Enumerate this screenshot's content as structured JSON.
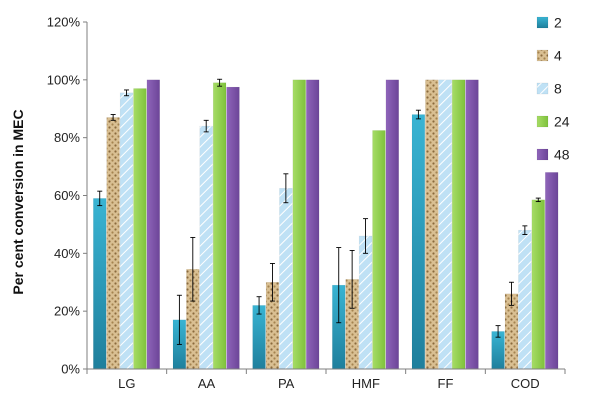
{
  "chart_data": {
    "type": "bar",
    "ylabel": "Per cent conversion in MEC",
    "y_ticks": [
      "0%",
      "20%",
      "40%",
      "60%",
      "80%",
      "100%",
      "120%"
    ],
    "ylim": [
      0,
      120
    ],
    "grid": false,
    "legend_position": "right",
    "categories": [
      "LG",
      "AA",
      "PA",
      "HMF",
      "FF",
      "COD"
    ],
    "series": [
      {
        "name": "2",
        "color": "#2f9fbf",
        "pattern": "solid-gradient",
        "values": [
          59,
          17,
          22,
          29,
          88,
          13
        ],
        "errors": [
          2.5,
          8.5,
          3,
          13,
          1.5,
          2
        ]
      },
      {
        "name": "4",
        "color": "#c9a877",
        "pattern": "dots",
        "values": [
          87,
          34.5,
          30,
          31,
          100,
          26
        ],
        "errors": [
          1,
          11,
          6.5,
          10,
          0,
          4
        ]
      },
      {
        "name": "8",
        "color": "#a9d4ee",
        "pattern": "diagonal",
        "values": [
          95.5,
          84,
          62.5,
          46,
          100,
          48
        ],
        "errors": [
          1,
          2,
          5,
          6,
          0,
          1.5
        ]
      },
      {
        "name": "24",
        "color": "#92d050",
        "pattern": "solid",
        "values": [
          97,
          99,
          100,
          82.5,
          100,
          58.5
        ],
        "errors": [
          0,
          1.2,
          0,
          0,
          0,
          0.6
        ]
      },
      {
        "name": "48",
        "color": "#7f55a8",
        "pattern": "solid",
        "values": [
          100,
          97.5,
          100,
          100,
          100,
          68
        ],
        "errors": [
          0,
          0,
          0,
          0,
          0,
          0
        ]
      }
    ]
  }
}
